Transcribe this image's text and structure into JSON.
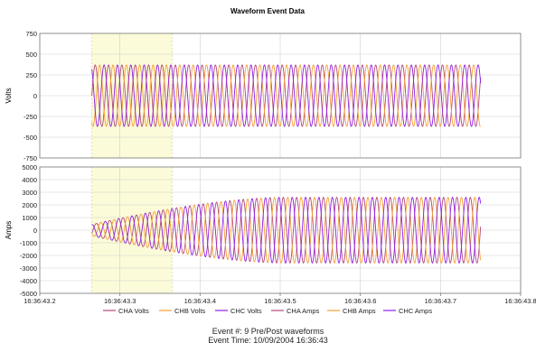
{
  "chart_data": {
    "title": "Waveform Event Data",
    "type": "line",
    "x_tick_labels": [
      "16:36:43.2",
      "16:36:43.3",
      "16:36:43.4",
      "16:36:43.5",
      "16:36:43.6",
      "16:36:43.7",
      "16:36:43.8"
    ],
    "x_range_seconds": [
      43.2,
      43.8
    ],
    "highlight_range_seconds": [
      43.265,
      43.365
    ],
    "highlight_color": "#fbfbd9",
    "waveform_start_seconds": 43.265,
    "waveform_end_seconds": 43.75,
    "frequency_hz": 60,
    "panels": [
      {
        "ylabel": "Volts",
        "ylim": [
          -750,
          750
        ],
        "yticks": [
          "750",
          "500",
          "250",
          "0",
          "-250",
          "-500",
          "-750"
        ],
        "ytick_values": [
          750,
          500,
          250,
          0,
          -250,
          -500,
          -750
        ],
        "series": [
          {
            "name": "CHA Volts",
            "color": "#b24a7c",
            "amplitude": 370,
            "phase_deg": 0
          },
          {
            "name": "CHB Volts",
            "color": "#f5a033",
            "amplitude": 370,
            "phase_deg": -120
          },
          {
            "name": "CHC Volts",
            "color": "#8f1fe8",
            "amplitude": 370,
            "phase_deg": 120
          }
        ]
      },
      {
        "ylabel": "Amps",
        "ylim": [
          -5000,
          5000
        ],
        "yticks": [
          "5000",
          "4000",
          "3000",
          "2000",
          "1000",
          "0",
          "-1000",
          "-2000",
          "-3000",
          "-4000",
          "-5000"
        ],
        "ytick_values": [
          5000,
          4000,
          3000,
          2000,
          1000,
          0,
          -1000,
          -2000,
          -3000,
          -4000,
          -5000
        ],
        "series": [
          {
            "name": "CHA Amps",
            "color": "#b24a7c",
            "amplitude_start": 450,
            "amplitude_end": 2600,
            "ramp_end_seconds": 43.5,
            "phase_deg": -30
          },
          {
            "name": "CHB Amps",
            "color": "#f5a033",
            "amplitude_start": 450,
            "amplitude_end": 2600,
            "ramp_end_seconds": 43.5,
            "phase_deg": -150
          },
          {
            "name": "CHC Amps",
            "color": "#8f1fe8",
            "amplitude_start": 450,
            "amplitude_end": 2600,
            "ramp_end_seconds": 43.5,
            "phase_deg": 90
          }
        ]
      }
    ],
    "legend": [
      {
        "name": "CHA Volts",
        "color": "#b24a7c"
      },
      {
        "name": "CHB Volts",
        "color": "#f5a033"
      },
      {
        "name": "CHC Volts",
        "color": "#8f1fe8"
      },
      {
        "name": "CHA Amps",
        "color": "#b24a7c"
      },
      {
        "name": "CHB Amps",
        "color": "#f5a033"
      },
      {
        "name": "CHC Amps",
        "color": "#8f1fe8"
      }
    ],
    "legend_position": "bottom",
    "grid": true
  },
  "footer": {
    "event_line": "Event #:  9  Pre/Post waveforms",
    "time_line": "Event Time:  10/09/2004 16:36:43"
  }
}
